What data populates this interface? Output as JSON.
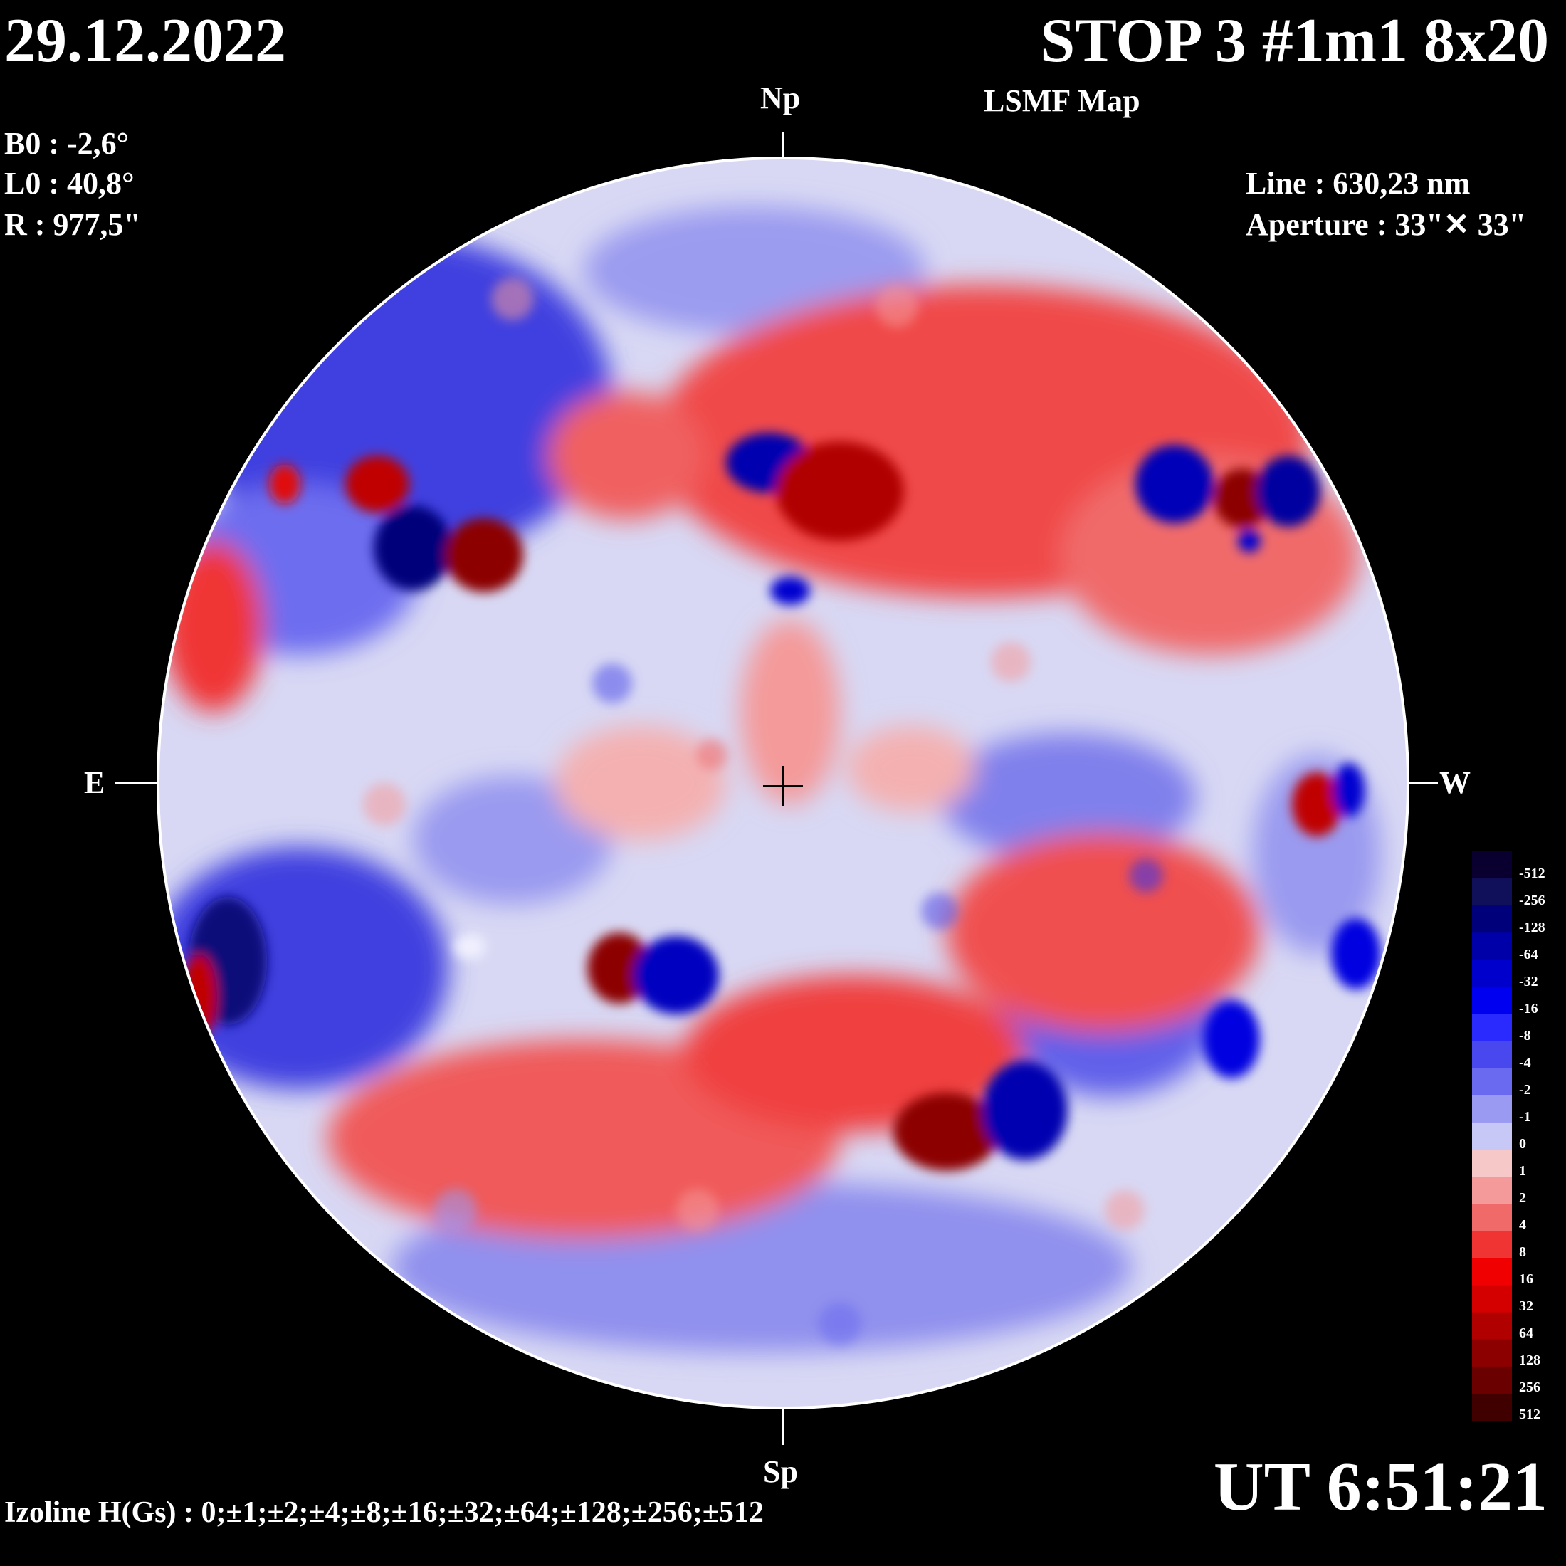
{
  "header": {
    "date": "29.12.2022",
    "title": "STOP 3 #1m1 8x20",
    "subtitle": "LSMF  Map"
  },
  "ephemeris": {
    "b0": "B0 : -2,6°",
    "l0": "L0 : 40,8°",
    "r": "R  : 977,5\""
  },
  "instrument": {
    "line": "Line :  630,23 nm",
    "aperture": "Aperture : 33\"✕ 33\""
  },
  "directions": {
    "north": "Np",
    "south": "Sp",
    "east": "E",
    "west": "W"
  },
  "time": "UT 6:51:21",
  "izoline": "Izoline H(Gs) : 0;±1;±2;±4;±8;±16;±32;±64;±128;±256;±512",
  "colorbar": {
    "levels": [
      "-512",
      "-256",
      "-128",
      "-64",
      "-32",
      "-16",
      "-8",
      "-4",
      "-2",
      "-1",
      "0",
      "1",
      "2",
      "4",
      "8",
      "16",
      "32",
      "64",
      "128",
      "256",
      "512"
    ],
    "colors": [
      "#0a0030",
      "#10105a",
      "#00007a",
      "#0000a8",
      "#0000cc",
      "#0000f0",
      "#2a2aff",
      "#4848ee",
      "#6a6af0",
      "#9a9af2",
      "#c8c8f6",
      "#f6c8c8",
      "#f49a9a",
      "#f06a6a",
      "#f03434",
      "#f00000",
      "#d40000",
      "#b00000",
      "#8c0000",
      "#6a0000",
      "#400000"
    ],
    "positive_color": "#e01010",
    "negative_color": "#1010e0"
  }
}
